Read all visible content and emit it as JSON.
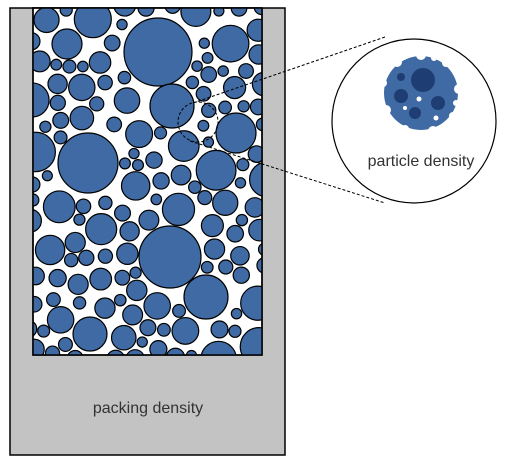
{
  "labels": {
    "packing": "packing density",
    "particle": "particle density"
  }
}
